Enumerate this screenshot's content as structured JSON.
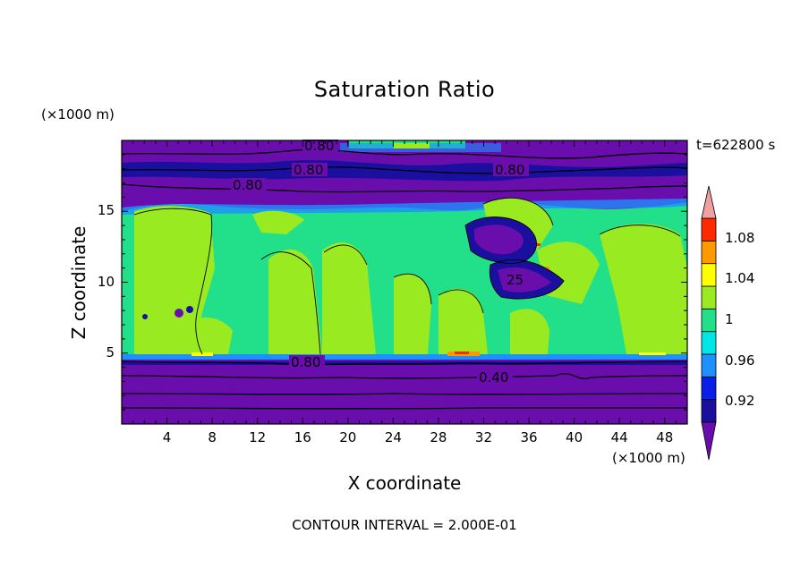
{
  "chart_data": {
    "type": "heatmap",
    "title": "Saturation Ratio",
    "xlabel": "X coordinate",
    "ylabel": "Z coordinate",
    "x_unit": "(×1000 m)",
    "y_unit": "(×1000 m)",
    "time_label": "t=622800 s",
    "footer": "CONTOUR INTERVAL = 2.000E-01",
    "xlim": [
      0,
      50
    ],
    "ylim": [
      0,
      20
    ],
    "x_ticks": [
      "4",
      "8",
      "12",
      "16",
      "20",
      "24",
      "28",
      "32",
      "36",
      "40",
      "44",
      "48"
    ],
    "y_ticks": [
      "5",
      "10",
      "15"
    ],
    "contour_labels": [
      "0.80",
      "0.80",
      "0.80",
      "0.80",
      "0.80",
      "0.40",
      "25"
    ],
    "colorbar": {
      "labels": [
        "1.08",
        "1.04",
        "1",
        "0.96",
        "0.92"
      ],
      "levels": [
        0.9,
        0.92,
        0.94,
        0.96,
        0.98,
        1.0,
        1.02,
        1.04,
        1.06,
        1.08,
        1.1
      ],
      "colors": [
        "#6a0dad",
        "#1a0f9e",
        "#0a1fe6",
        "#1e90ff",
        "#00e5e5",
        "#22e08a",
        "#9aea22",
        "#ffff00",
        "#ff9900",
        "#ff2a00",
        "#f0a0a0"
      ]
    }
  }
}
